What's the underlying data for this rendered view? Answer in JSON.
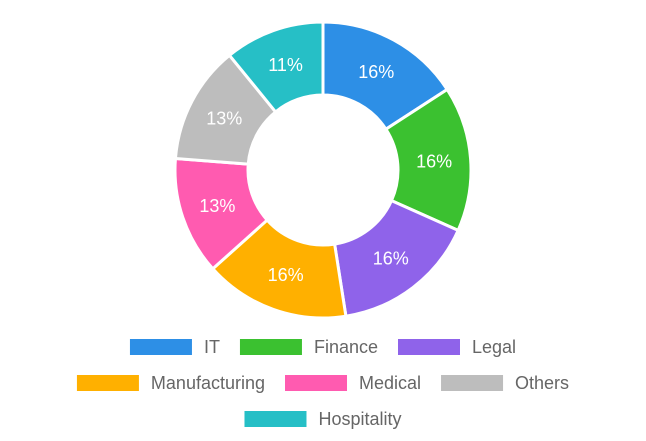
{
  "chart_data": {
    "type": "pie",
    "variant": "doughnut",
    "categories": [
      "IT",
      "Finance",
      "Legal",
      "Manufacturing",
      "Medical",
      "Others",
      "Hospitality"
    ],
    "values": [
      16,
      16,
      16,
      16,
      13,
      13,
      11
    ],
    "labels": [
      "16%",
      "16%",
      "16%",
      "16%",
      "13%",
      "13%",
      "11%"
    ],
    "colors": [
      "#2d8fe6",
      "#3bc130",
      "#8f63ea",
      "#ffb000",
      "#ff5bb0",
      "#bdbdbd",
      "#26bfc6"
    ],
    "legend": {
      "position": "bottom",
      "rows": [
        [
          "IT",
          "Finance",
          "Legal"
        ],
        [
          "Manufacturing",
          "Medical",
          "Others"
        ],
        [
          "Hospitality"
        ]
      ]
    }
  }
}
